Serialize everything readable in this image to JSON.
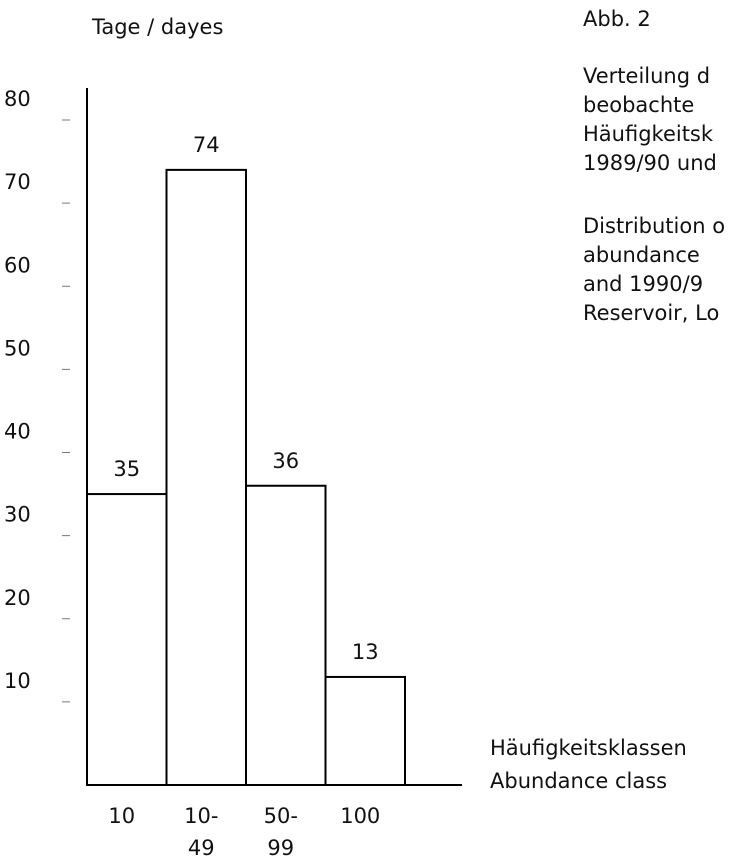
{
  "chart_data": {
    "type": "bar",
    "title": "Abb. 2",
    "caption": [
      "Verteilung d",
      "beobachte",
      "Häufigkeitsk",
      "1989/90 und",
      "Distribution o",
      "abundance",
      "and 1990/9",
      "Reservoir, Lo"
    ],
    "ylabel": "Tage / dayes",
    "xlabel": [
      "Häufigkeitsklassen",
      "Abundance class"
    ],
    "categories": [
      "10",
      "10-\n49",
      "50-\n99",
      "100"
    ],
    "values": [
      35,
      74,
      36,
      13
    ],
    "color": "#ffffff",
    "ylim": [
      0,
      80
    ],
    "yticks": [
      10,
      20,
      30,
      40,
      50,
      60,
      70,
      80
    ]
  }
}
